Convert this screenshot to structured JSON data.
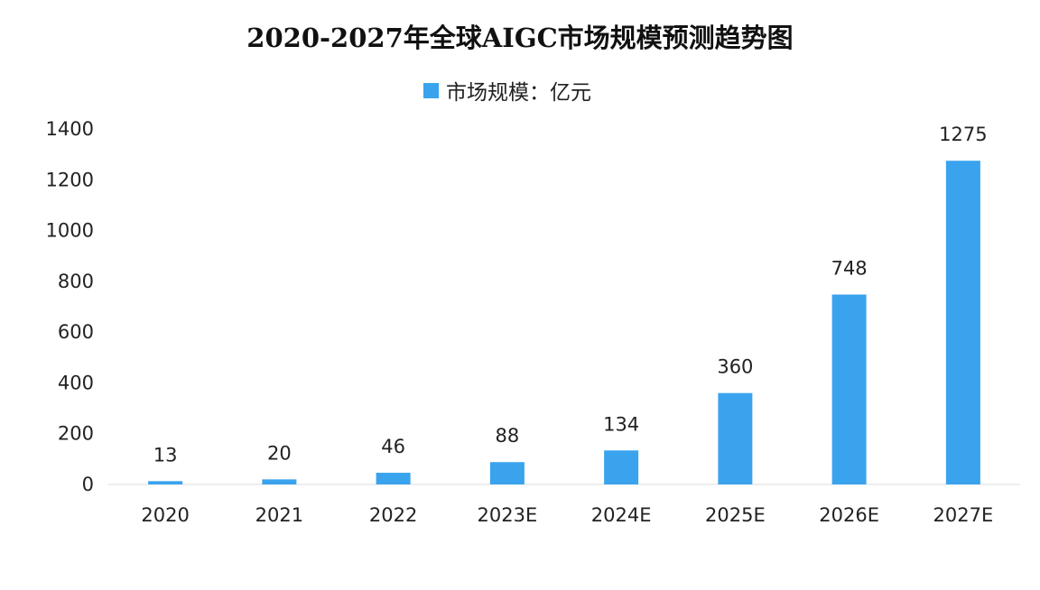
{
  "chart_data": {
    "type": "bar",
    "title": "2020-2027年全球AIGC市场规模预测趋势图",
    "categories": [
      "2020",
      "2021",
      "2022",
      "2023E",
      "2024E",
      "2025E",
      "2026E",
      "2027E"
    ],
    "series": [
      {
        "name": "市场规模：亿元",
        "values": [
          13,
          20,
          46,
          88,
          134,
          360,
          748,
          1275
        ],
        "color": "#3aa3ee"
      }
    ],
    "data_labels": [
      "13",
      "20",
      "46",
      "88",
      "134",
      "360",
      "748",
      "1275"
    ],
    "ylim": [
      0,
      1400
    ],
    "yticks": [
      0,
      200,
      400,
      600,
      800,
      1000,
      1200,
      1400
    ],
    "ytick_labels": [
      "0",
      "200",
      "400",
      "600",
      "800",
      "1000",
      "1200",
      "1400"
    ],
    "legend_position": "top-center",
    "grid": false
  }
}
